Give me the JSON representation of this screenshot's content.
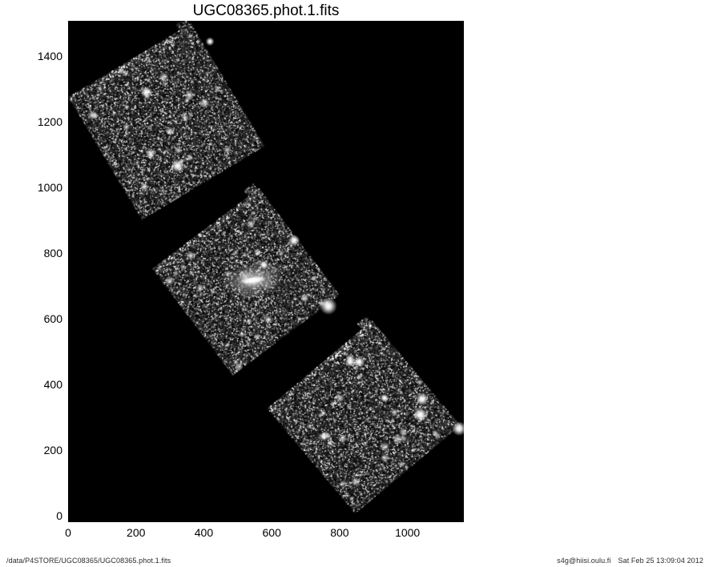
{
  "page": {
    "background_color": "#ffffff"
  },
  "footer": {
    "file_path": "/data/P4STORE/UGC08365/UGC08365.phot.1.fits",
    "user_host": "s4g@hiisi.oulu.fi",
    "timestamp": "Sat Feb 25 13:09:04 2012"
  },
  "chart_data": {
    "type": "heatmap",
    "title": "UGC08365.phot.1.fits",
    "xlabel": "",
    "ylabel": "",
    "xlim": [
      0,
      1166
    ],
    "ylim": [
      -20,
      1507
    ],
    "x_ticks": [
      0,
      200,
      400,
      600,
      800,
      1000
    ],
    "y_ticks": [
      0,
      200,
      400,
      600,
      800,
      1000,
      1200,
      1400
    ],
    "grid": false,
    "legend": false,
    "plot_background_color": "#000000",
    "colormap": "grayscale",
    "description": "Spitzer/IRAC mosaic of UGC08365: three rotated square star-field tiles on black background; diffuse galaxy in the central tile",
    "tiles": [
      {
        "name": "northwest-tile",
        "center_x": 290,
        "center_y": 1200,
        "size": 422,
        "rotation_deg": -31
      },
      {
        "name": "central-tile",
        "center_x": 524,
        "center_y": 712,
        "size": 394,
        "rotation_deg": -37
      },
      {
        "name": "southeast-tile",
        "center_x": 871,
        "center_y": 300,
        "size": 404,
        "rotation_deg": -40
      }
    ],
    "galaxy": {
      "name": "UGC08365",
      "x": 545,
      "y": 717,
      "halo_rx": 94,
      "halo_ry": 54,
      "tilt_deg": -8
    },
    "bright_stars": [
      {
        "x": 231,
        "y": 1290,
        "r": 4.0
      },
      {
        "x": 323,
        "y": 1065,
        "r": 4.5
      },
      {
        "x": 418,
        "y": 1444,
        "r": 3.0
      },
      {
        "x": 666,
        "y": 838,
        "r": 4.0
      },
      {
        "x": 767,
        "y": 638,
        "r": 6.0
      },
      {
        "x": 578,
        "y": 763,
        "r": 3.0
      },
      {
        "x": 1043,
        "y": 355,
        "r": 4.5
      },
      {
        "x": 1038,
        "y": 307,
        "r": 5.0
      },
      {
        "x": 1152,
        "y": 265,
        "r": 5.0
      },
      {
        "x": 857,
        "y": 468,
        "r": 4.0
      },
      {
        "x": 831,
        "y": 468,
        "r": 3.5
      },
      {
        "x": 932,
        "y": 358,
        "r": 3.0
      },
      {
        "x": 753,
        "y": 241,
        "r": 3.0
      }
    ]
  }
}
